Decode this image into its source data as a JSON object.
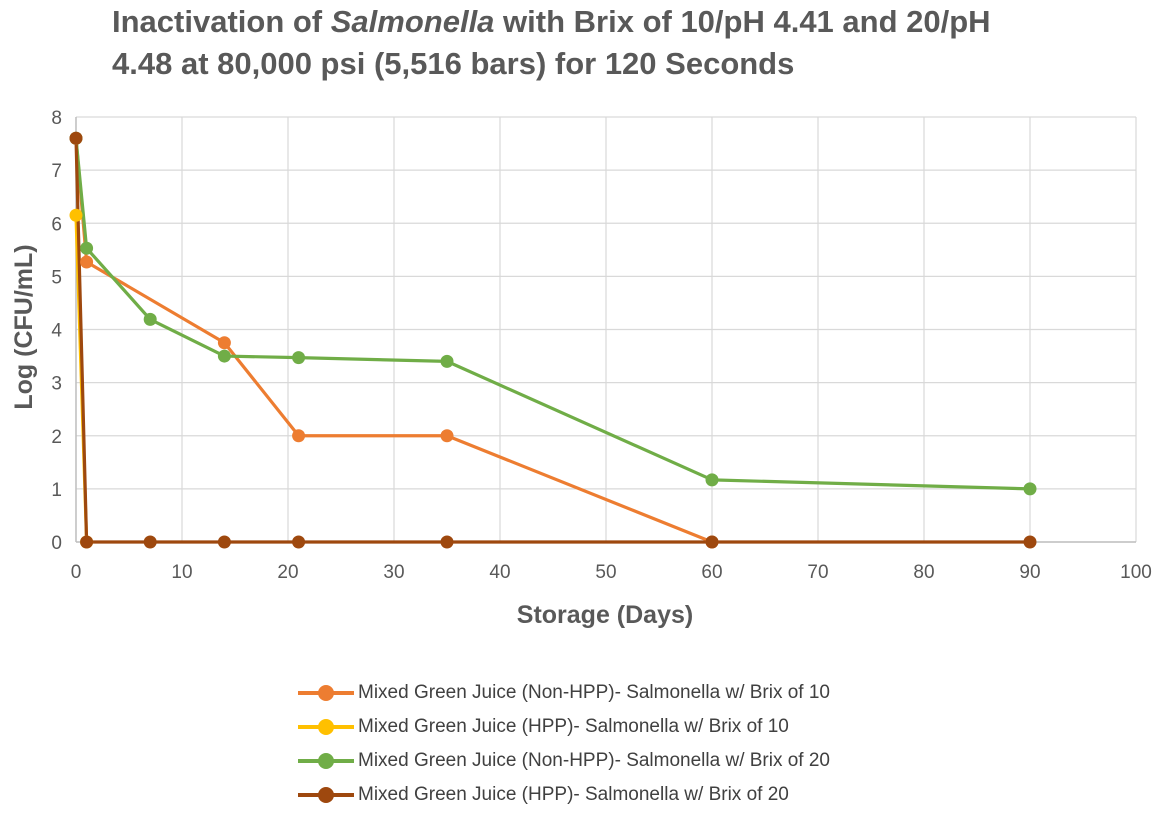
{
  "chart_data": {
    "type": "line",
    "title_part1": "Inactivation of ",
    "title_italic": "Salmonella",
    "title_part2": " with Brix of 10/pH 4.41 and 20/pH",
    "title_line2": "4.48 at 80,000 psi (5,516 bars) for 120 Seconds",
    "xlabel": "Storage (Days)",
    "ylabel": "Log (CFU/mL)",
    "xlim": [
      0,
      100
    ],
    "ylim": [
      0,
      8
    ],
    "xticks": [
      0,
      10,
      20,
      30,
      40,
      50,
      60,
      70,
      80,
      90,
      100
    ],
    "yticks": [
      0,
      1,
      2,
      3,
      4,
      5,
      6,
      7,
      8
    ],
    "grid": true,
    "legend_position": "bottom",
    "series": [
      {
        "name": "Mixed Green Juice (Non-HPP)- Salmonella w/ Brix of 10",
        "color": "#ED7D31",
        "x": [
          0,
          1,
          14,
          21,
          35,
          60
        ],
        "y": [
          7.6,
          5.27,
          3.75,
          2.0,
          2.0,
          0.0
        ]
      },
      {
        "name": "Mixed Green Juice (HPP)- Salmonella w/ Brix of 10",
        "color": "#FFC000",
        "x": [
          0,
          1
        ],
        "y": [
          6.15,
          0.0
        ]
      },
      {
        "name": "Mixed Green Juice (Non-HPP)- Salmonella w/ Brix of 20",
        "color": "#70AD47",
        "x": [
          0,
          1,
          7,
          14,
          21,
          35,
          60,
          90
        ],
        "y": [
          7.6,
          5.53,
          4.19,
          3.5,
          3.47,
          3.4,
          1.17,
          1.0
        ]
      },
      {
        "name": "Mixed Green Juice (HPP)- Salmonella w/ Brix of 20",
        "color": "#9E480E",
        "x": [
          0,
          1,
          7,
          14,
          21,
          35,
          60,
          90
        ],
        "y": [
          7.6,
          0.0,
          0.0,
          0.0,
          0.0,
          0.0,
          0.0,
          0.0
        ]
      }
    ]
  }
}
